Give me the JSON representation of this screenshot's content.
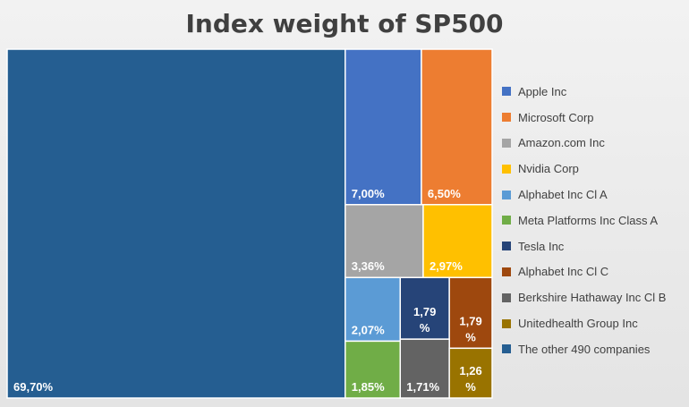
{
  "chart_data": {
    "type": "treemap",
    "title": "Index weight of SP500",
    "labels": [
      "Apple Inc",
      "Microsoft Corp",
      "Amazon.com Inc",
      "Nvidia Corp",
      "Alphabet Inc Cl A",
      "Meta Platforms Inc Class A",
      "Tesla Inc",
      "Alphabet Inc Cl C",
      "Berkshire Hathaway Inc Cl B",
      "Unitedhealth Group Inc",
      "The other 490 companies"
    ],
    "values": [
      7.0,
      6.5,
      3.36,
      2.97,
      2.07,
      1.85,
      1.79,
      1.79,
      1.71,
      1.26,
      69.7
    ],
    "value_labels": [
      [
        "7,00%"
      ],
      [
        "6,50%"
      ],
      [
        "3,36%"
      ],
      [
        "2,97%"
      ],
      [
        "2,07%"
      ],
      [
        "1,85%"
      ],
      [
        "1,79",
        "%"
      ],
      [
        "1,79",
        "%"
      ],
      [
        "1,71%"
      ],
      [
        "1,26",
        "%"
      ],
      [
        "69,70%"
      ]
    ],
    "colors": [
      "#4472c4",
      "#ed7d31",
      "#a5a5a5",
      "#ffc000",
      "#5b9bd5",
      "#70ad47",
      "#264478",
      "#9e480e",
      "#636363",
      "#997300",
      "#255e91"
    ],
    "legend_position": "right",
    "unit": "%"
  }
}
